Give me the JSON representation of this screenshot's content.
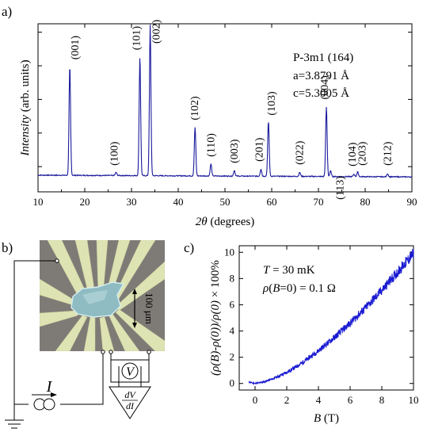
{
  "panels": {
    "a": "a)",
    "b": "b)",
    "c": "c)"
  },
  "colors": {
    "trace": "#1a1a9c",
    "axis": "#000000",
    "photo_bg": "#7e7b77",
    "electrode": "#dde3b3",
    "crystal": "#8fbcc2"
  },
  "chart_data": [
    {
      "type": "line",
      "panel": "a",
      "xlabel": "2θ (degrees)",
      "ylabel": "Intensity (arb. units)",
      "xlim": [
        10,
        90
      ],
      "ylim": [
        0,
        1
      ],
      "x_ticks": [
        10,
        20,
        30,
        40,
        50,
        60,
        70,
        80,
        90
      ],
      "y_ticks_labeled": false,
      "baseline": 0.055,
      "peaks": [
        {
          "hkl": "(001)",
          "x": 16.8,
          "y": 0.74
        },
        {
          "hkl": "(100)",
          "x": 26.7,
          "y": 0.075
        },
        {
          "hkl": "(101)",
          "x": 31.8,
          "y": 0.8
        },
        {
          "hkl": "(002)",
          "x": 34.0,
          "y": 1.0
        },
        {
          "hkl": "(102)",
          "x": 43.6,
          "y": 0.36
        },
        {
          "hkl": "(110)",
          "x": 47.0,
          "y": 0.13
        },
        {
          "hkl": "(003)",
          "x": 52.0,
          "y": 0.09
        },
        {
          "hkl": "(201)",
          "x": 57.7,
          "y": 0.1
        },
        {
          "hkl": "(103)",
          "x": 59.3,
          "y": 0.4
        },
        {
          "hkl": "(022)",
          "x": 66.0,
          "y": 0.08
        },
        {
          "hkl": "(004)",
          "x": 71.7,
          "y": 0.49
        },
        {
          "hkl": "(113)",
          "x": 72.6,
          "y": 0.09
        },
        {
          "hkl": "(104)",
          "x": 77.6,
          "y": 0.07
        },
        {
          "hkl": "(203)",
          "x": 78.4,
          "y": 0.085
        },
        {
          "hkl": "(212)",
          "x": 84.8,
          "y": 0.075
        }
      ],
      "annotations": [
        "P-3m1 (164)",
        "a=3.8791  Å",
        "c=5.3005  Å"
      ]
    },
    {
      "type": "line",
      "panel": "c",
      "xlabel": "B (T)",
      "ylabel": "(ρ(B)−ρ(0))/ρ(0) × 100%",
      "xlim": [
        -1,
        10
      ],
      "ylim": [
        -0.5,
        10.5
      ],
      "x_ticks": [
        0,
        2,
        4,
        6,
        8,
        10
      ],
      "y_ticks": [
        0,
        2,
        4,
        6,
        8,
        10
      ],
      "x": [
        -0.4,
        -0.2,
        0,
        0.5,
        1,
        1.5,
        2,
        2.5,
        3,
        3.5,
        4,
        4.5,
        5,
        5.5,
        6,
        6.5,
        7,
        7.5,
        8,
        8.5,
        9,
        9.5,
        10
      ],
      "y": [
        0.1,
        0.05,
        0.0,
        0.1,
        0.3,
        0.55,
        0.85,
        1.2,
        1.6,
        2.05,
        2.5,
        3.0,
        3.5,
        4.05,
        4.6,
        5.2,
        5.8,
        6.45,
        7.1,
        7.8,
        8.5,
        9.2,
        9.9
      ],
      "annotations": [
        "T = 30 mK",
        "ρ(B=0) = 0.1 Ω"
      ]
    }
  ],
  "photo": {
    "scale_label": "100 μm",
    "current_label": "I",
    "voltage_label": "V",
    "lockin_label_num": "dV",
    "lockin_label_den": "dI"
  }
}
